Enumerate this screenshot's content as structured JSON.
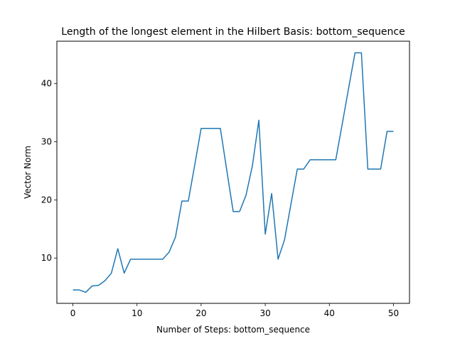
{
  "chart_data": {
    "type": "line",
    "title": "Length of the longest element in the Hilbert Basis: bottom_sequence",
    "xlabel": "Number of Steps: bottom_sequence",
    "ylabel": "Vector Norm",
    "xlim": [
      -2.5,
      52.5
    ],
    "ylim": [
      2.2,
      47.3
    ],
    "xticks": [
      0,
      10,
      20,
      30,
      40,
      50
    ],
    "yticks": [
      10,
      20,
      30,
      40
    ],
    "grid": false,
    "series": [
      {
        "color": "#1f77b4",
        "x": [
          0,
          1,
          2,
          3,
          4,
          5,
          6,
          7,
          8,
          9,
          10,
          11,
          12,
          13,
          14,
          15,
          16,
          17,
          18,
          19,
          20,
          21,
          22,
          23,
          24,
          25,
          26,
          27,
          28,
          29,
          30,
          31,
          32,
          33,
          34,
          35,
          36,
          37,
          38,
          39,
          40,
          41,
          42,
          43,
          44,
          45,
          46,
          47,
          48,
          49,
          50
        ],
        "y": [
          4.5,
          4.5,
          4.1,
          5.2,
          5.3,
          6.1,
          7.4,
          11.6,
          7.4,
          9.8,
          9.8,
          9.8,
          9.8,
          9.8,
          9.8,
          11.0,
          13.6,
          19.8,
          19.8,
          26.0,
          32.3,
          32.3,
          32.3,
          32.3,
          25.1,
          18.0,
          18.0,
          20.8,
          25.9,
          33.7,
          14.1,
          21.1,
          9.8,
          13.1,
          19.2,
          25.3,
          25.3,
          26.9,
          26.9,
          26.9,
          26.9,
          26.9,
          33.0,
          39.2,
          45.3,
          45.3,
          25.3,
          25.3,
          25.3,
          31.8,
          31.8
        ]
      }
    ]
  }
}
